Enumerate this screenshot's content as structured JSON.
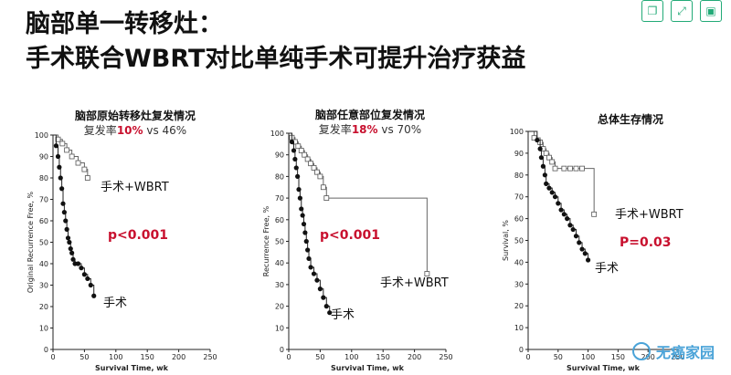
{
  "header": {
    "title_line1": "脑部单一转移灶：",
    "title_line2": "手术联合WBRT对比单纯手术可提升治疗获益"
  },
  "toolbar": {
    "icons": [
      "copy-icon",
      "expand-icon",
      "save-icon"
    ]
  },
  "watermark": {
    "text": "无癌家园"
  },
  "colors": {
    "accent_red": "#c8102e",
    "curve": "#333333"
  },
  "chart_data": [
    {
      "type": "line",
      "title": "脑部原始转移灶复发情况",
      "subtitle_prefix": "复发率",
      "subtitle_val1": "10%",
      "subtitle_mid": " vs 46%",
      "xlabel": "Survival Time, wk",
      "ylabel": "Original Recurrence Free, %",
      "xlim": [
        0,
        250
      ],
      "ylim": [
        0,
        100
      ],
      "xticks": [
        "0",
        "50",
        "100",
        "150",
        "200",
        "250"
      ],
      "yticks": [
        "0",
        "10",
        "20",
        "30",
        "40",
        "50",
        "60",
        "70",
        "80",
        "90",
        "100"
      ],
      "pvalue": "p<0.001",
      "series": [
        {
          "name": "手术+WBRT",
          "marker": "square",
          "x": [
            0,
            8,
            15,
            22,
            30,
            40,
            50,
            55
          ],
          "y": [
            100,
            98,
            96,
            93,
            90,
            87,
            84,
            80
          ]
        },
        {
          "name": "手术",
          "marker": "dot",
          "x": [
            0,
            5,
            8,
            10,
            12,
            14,
            16,
            18,
            20,
            22,
            24,
            26,
            28,
            30,
            32,
            35,
            40,
            45,
            50,
            55,
            60,
            65
          ],
          "y": [
            100,
            95,
            90,
            85,
            80,
            75,
            68,
            64,
            60,
            56,
            52,
            50,
            47,
            45,
            42,
            40,
            40,
            38,
            35,
            33,
            30,
            25
          ]
        }
      ]
    },
    {
      "type": "line",
      "title": "脑部任意部位复发情况",
      "subtitle_prefix": "复发率",
      "subtitle_val1": "18%",
      "subtitle_mid": " vs 70%",
      "xlabel": "Survival Time, wk",
      "ylabel": "Recurrence Free, %",
      "xlim": [
        0,
        250
      ],
      "ylim": [
        0,
        100
      ],
      "xticks": [
        "0",
        "50",
        "100",
        "150",
        "200",
        "250"
      ],
      "yticks": [
        "0",
        "10",
        "20",
        "30",
        "40",
        "50",
        "60",
        "70",
        "80",
        "90",
        "100"
      ],
      "pvalue": "p<0.001",
      "series": [
        {
          "name": "手术+WBRT",
          "marker": "square",
          "x": [
            0,
            5,
            10,
            15,
            20,
            25,
            30,
            35,
            40,
            45,
            50,
            55,
            60,
            220
          ],
          "y": [
            100,
            98,
            96,
            94,
            92,
            90,
            88,
            86,
            84,
            82,
            80,
            75,
            70,
            35
          ]
        },
        {
          "name": "手术",
          "marker": "dot",
          "x": [
            0,
            5,
            8,
            10,
            12,
            14,
            16,
            18,
            20,
            22,
            24,
            26,
            28,
            30,
            32,
            35,
            40,
            45,
            50,
            55,
            60,
            65
          ],
          "y": [
            100,
            96,
            92,
            88,
            84,
            80,
            74,
            70,
            65,
            62,
            58,
            54,
            50,
            46,
            42,
            38,
            35,
            32,
            28,
            24,
            20,
            17
          ]
        }
      ]
    },
    {
      "type": "line",
      "title": "总体生存情况",
      "xlabel": "Survival Time, wk",
      "ylabel": "Survival, %",
      "xlim": [
        0,
        250
      ],
      "ylim": [
        0,
        100
      ],
      "xticks": [
        "0",
        "50",
        "100",
        "150",
        "200",
        "250"
      ],
      "yticks": [
        "0",
        "10",
        "20",
        "30",
        "40",
        "50",
        "60",
        "70",
        "80",
        "90",
        "100"
      ],
      "pvalue": "P=0.03",
      "series": [
        {
          "name": "手术+WBRT",
          "marker": "square",
          "x": [
            0,
            10,
            20,
            25,
            30,
            35,
            40,
            45,
            60,
            70,
            80,
            90,
            110
          ],
          "y": [
            100,
            97,
            95,
            92,
            90,
            88,
            86,
            83,
            83,
            83,
            83,
            83,
            62
          ]
        },
        {
          "name": "手术",
          "marker": "dot",
          "x": [
            0,
            15,
            20,
            22,
            25,
            28,
            30,
            35,
            40,
            45,
            50,
            55,
            60,
            65,
            70,
            75,
            80,
            85,
            90,
            95,
            100
          ],
          "y": [
            100,
            96,
            92,
            88,
            84,
            80,
            76,
            74,
            72,
            70,
            67,
            64,
            62,
            60,
            57,
            55,
            52,
            49,
            46,
            44,
            41
          ]
        }
      ]
    }
  ]
}
